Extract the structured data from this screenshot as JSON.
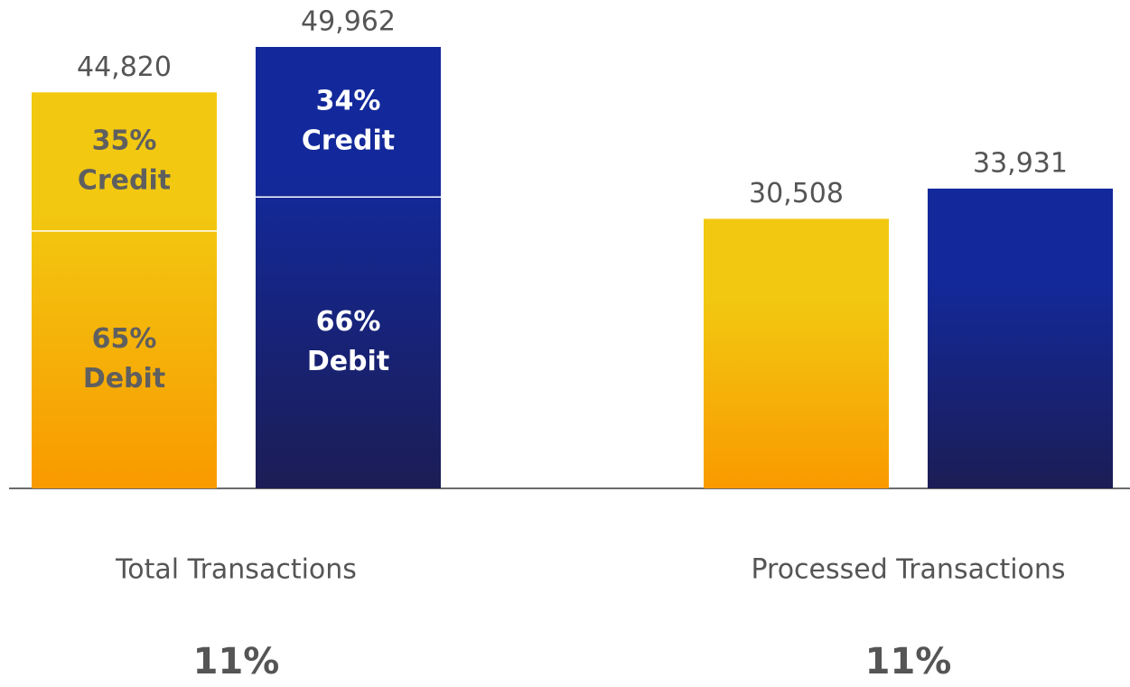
{
  "chart_data": {
    "type": "bar",
    "categories": [
      "Total Transactions",
      "Processed Transactions"
    ],
    "series": [
      {
        "color": [
          "#f2c811",
          "#f99a00"
        ],
        "values": [
          44820,
          30508
        ],
        "value_labels": [
          "44,820",
          "30,508"
        ],
        "label_color": "#5f5f5f",
        "breakdown": [
          {
            "names": [
              "Credit",
              "Debit"
            ],
            "values": [
              35,
              65
            ],
            "value_labels": [
              "35%",
              "65%"
            ]
          },
          null
        ]
      },
      {
        "color": [
          "#13299b",
          "#1c1d55"
        ],
        "values": [
          49962,
          33931
        ],
        "value_labels": [
          "49,962",
          "33,931"
        ],
        "label_color": "#ffffff",
        "breakdown": [
          {
            "names": [
              "Credit",
              "Debit"
            ],
            "values": [
              34,
              66
            ],
            "value_labels": [
              "34%",
              "66%"
            ]
          },
          null
        ]
      }
    ],
    "growth": {
      "values": [
        11,
        11
      ],
      "value_labels": [
        "11%",
        "11%"
      ]
    }
  }
}
